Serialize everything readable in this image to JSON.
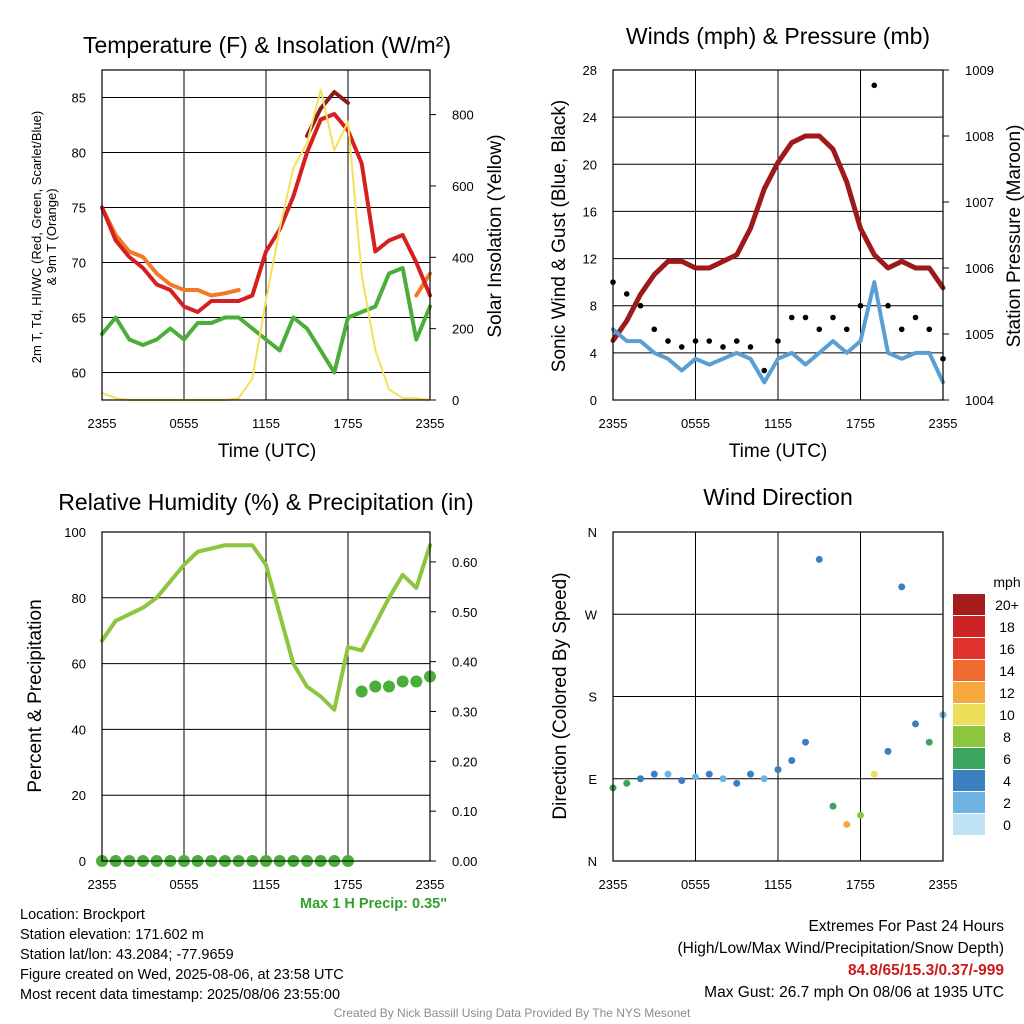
{
  "figure": {
    "footer": {
      "location": "Location: Brockport",
      "elevation": "Station elevation: 171.602 m",
      "latlon": "Station lat/lon: 43.2084; -77.9659",
      "created": "Figure created on Wed, 2025-08-06, at 23:58 UTC",
      "recent": "Most recent data timestamp: 2025/08/06 23:55:00",
      "max_precip": "Max 1 H Precip: 0.35\"",
      "extremes_title": "Extremes For Past 24 Hours",
      "extremes_sub": "(High/Low/Max Wind/Precipitation/Snow Depth)",
      "extremes_values": "84.8/65/15.3/0.37/-999",
      "max_gust": "Max Gust: 26.7 mph On 08/06 at 1935 UTC",
      "credit": "Created By Nick Bassill Using Data Provided By The NYS Mesonet"
    },
    "colors": {
      "temp": "#d62020",
      "dew": "#4cae3a",
      "heat_index": "#8b1a1a",
      "temp9m": "#f07a2a",
      "insolation": "#f5e05a",
      "wind": "#5a9fd4",
      "gust": "#000000",
      "pressure": "#9e1a1a",
      "rh": "#8cc63f",
      "precip": "#4cae3a"
    }
  },
  "chart_data": [
    {
      "id": "temperature",
      "type": "line",
      "title": "Temperature (F) & Insolation (W/m²)",
      "xlabel": "Time (UTC)",
      "ylabel_line1": "2m T, Td, HI/WC (Red, Green, Scarlet/Blue)",
      "ylabel_line2": "& 9m T (Orange)",
      "y2label": "Solar Insolation (Yellow)",
      "x_ticks": [
        "2355",
        "0555",
        "1155",
        "1755",
        "2355"
      ],
      "y_ticks": [
        60,
        65,
        70,
        75,
        80,
        85
      ],
      "y2_ticks": [
        0,
        200,
        400,
        600,
        800
      ],
      "ylim": [
        57.5,
        87.5
      ],
      "y2lim": [
        0,
        925
      ],
      "x": [
        0,
        1,
        2,
        3,
        4,
        5,
        6,
        7,
        8,
        9,
        10,
        11,
        12,
        13,
        14,
        15,
        16,
        17,
        18,
        19,
        20,
        21,
        22,
        23,
        24
      ],
      "series": [
        {
          "key": "temp9m",
          "values": [
            75,
            72.5,
            71,
            70.5,
            69,
            68,
            67.5,
            67.5,
            67,
            67.2,
            67.5,
            null,
            null,
            null,
            null,
            null,
            null,
            null,
            null,
            null,
            null,
            null,
            null,
            67,
            69
          ]
        },
        {
          "key": "temp",
          "values": [
            75,
            72,
            70.5,
            69.5,
            68,
            67.5,
            66,
            65.5,
            66.5,
            66.5,
            66.5,
            67,
            71,
            73,
            76,
            80,
            83,
            83.5,
            82,
            79,
            71,
            72,
            72.5,
            70,
            67
          ]
        },
        {
          "key": "heat_index",
          "values": [
            null,
            null,
            null,
            null,
            null,
            null,
            null,
            null,
            null,
            null,
            null,
            null,
            null,
            null,
            null,
            81.5,
            84,
            85.5,
            84.5,
            null,
            null,
            null,
            null,
            null,
            null
          ]
        },
        {
          "key": "dew",
          "values": [
            63.5,
            65,
            63,
            62.5,
            63,
            64,
            63,
            64.5,
            64.5,
            65,
            65,
            64,
            63,
            62,
            65,
            64,
            62,
            60,
            65,
            65.5,
            66,
            69,
            69.5,
            63,
            66
          ]
        },
        {
          "key": "insolation",
          "values": [
            20,
            5,
            0,
            0,
            0,
            0,
            0,
            0,
            0,
            0,
            5,
            60,
            280,
            480,
            650,
            720,
            870,
            700,
            780,
            350,
            140,
            30,
            5,
            5,
            0
          ]
        }
      ]
    },
    {
      "id": "winds",
      "type": "line",
      "title": "Winds (mph) & Pressure (mb)",
      "xlabel": "Time (UTC)",
      "ylabel": "Sonic Wind & Gust (Blue, Black)",
      "y2label": "Station Pressure (Maroon)",
      "x_ticks": [
        "2355",
        "0555",
        "1155",
        "1755",
        "2355"
      ],
      "y_ticks": [
        0,
        4,
        8,
        12,
        16,
        20,
        24,
        28
      ],
      "y2_ticks": [
        1004,
        1005,
        1006,
        1007,
        1008,
        1009
      ],
      "ylim": [
        0,
        28
      ],
      "y2lim": [
        1004,
        1009
      ],
      "x": [
        0,
        1,
        2,
        3,
        4,
        5,
        6,
        7,
        8,
        9,
        10,
        11,
        12,
        13,
        14,
        15,
        16,
        17,
        18,
        19,
        20,
        21,
        22,
        23,
        24
      ],
      "series": [
        {
          "key": "pressure",
          "values": [
            1004.9,
            1005.2,
            1005.6,
            1005.9,
            1006.1,
            1006.1,
            1006.0,
            1006.0,
            1006.1,
            1006.2,
            1006.6,
            1007.2,
            1007.6,
            1007.9,
            1008.0,
            1008.0,
            1007.8,
            1007.3,
            1006.6,
            1006.2,
            1006.0,
            1006.1,
            1006.0,
            1006.0,
            1005.7
          ]
        },
        {
          "key": "wind",
          "values": [
            6,
            5,
            5,
            4,
            3.5,
            2.5,
            3.5,
            3,
            3.5,
            4,
            3.5,
            1.5,
            3.5,
            4,
            3,
            4,
            5,
            4,
            5,
            10,
            4,
            3.5,
            4,
            4,
            1.5
          ]
        },
        {
          "key": "gust",
          "values": [
            10,
            9,
            8,
            6,
            5,
            4.5,
            5,
            5,
            4.5,
            5,
            4.5,
            2.5,
            5,
            7,
            7,
            6,
            7,
            6,
            8,
            26.7,
            8,
            6,
            7,
            6,
            3.5
          ]
        }
      ]
    },
    {
      "id": "humidity",
      "type": "line",
      "title": "Relative Humidity (%) & Precipitation (in)",
      "ylabel": "Percent & Precipitation",
      "x_ticks": [
        "2355",
        "0555",
        "1155",
        "1755",
        "2355"
      ],
      "y_ticks": [
        0,
        20,
        40,
        60,
        80,
        100
      ],
      "y2_ticks": [
        "0.00",
        "0.10",
        "0.20",
        "0.30",
        "0.40",
        "0.50",
        "0.60"
      ],
      "ylim": [
        0,
        100
      ],
      "y2lim": [
        0,
        0.66
      ],
      "x": [
        0,
        1,
        2,
        3,
        4,
        5,
        6,
        7,
        8,
        9,
        10,
        11,
        12,
        13,
        14,
        15,
        16,
        17,
        18,
        19,
        20,
        21,
        22,
        23,
        24
      ],
      "series": [
        {
          "key": "rh",
          "values": [
            67,
            73,
            75,
            77,
            80,
            85,
            90,
            94,
            95,
            96,
            96,
            96,
            90,
            75,
            60,
            53,
            50,
            46,
            65,
            64,
            72,
            80,
            87,
            83,
            96
          ]
        },
        {
          "key": "precip",
          "values": [
            0,
            0,
            0,
            0,
            0,
            0,
            0,
            0,
            0,
            0,
            0,
            0,
            0,
            0,
            0,
            0,
            0,
            0,
            0,
            0.34,
            0.35,
            0.35,
            0.36,
            0.36,
            0.37
          ]
        }
      ]
    },
    {
      "id": "direction",
      "type": "scatter",
      "title": "Wind Direction",
      "ylabel": "Direction (Colored By Speed)",
      "x_ticks": [
        "2355",
        "0555",
        "1155",
        "1755",
        "2355"
      ],
      "y_ticks": [
        "N",
        "E",
        "S",
        "W",
        "N"
      ],
      "ylim": [
        0,
        360
      ],
      "legend_title": "mph",
      "legend_labels": [
        "20+",
        "18",
        "16",
        "14",
        "12",
        "10",
        "8",
        "6",
        "4",
        "2",
        "0"
      ],
      "legend_colors": [
        "#a51c1c",
        "#cc2424",
        "#e0332b",
        "#ef6a2e",
        "#f6a83e",
        "#ece05a",
        "#8cc63f",
        "#3aa55c",
        "#3a7fc0",
        "#6fb3e3",
        "#bfe3f5"
      ],
      "x": [
        0,
        1,
        2,
        3,
        4,
        5,
        6,
        7,
        8,
        9,
        10,
        11,
        12,
        13,
        14,
        15,
        16,
        17,
        18,
        19,
        20,
        21,
        22,
        23,
        24
      ],
      "values": [
        80,
        85,
        90,
        95,
        95,
        88,
        92,
        95,
        90,
        85,
        95,
        90,
        100,
        110,
        130,
        330,
        60,
        40,
        50,
        95,
        120,
        300,
        150,
        130,
        160
      ],
      "speeds": [
        5,
        6,
        4,
        3,
        2,
        3,
        2,
        3,
        2,
        3,
        3,
        1,
        3,
        4,
        3,
        4,
        5,
        12,
        7,
        10,
        4,
        3,
        4,
        5,
        2
      ]
    }
  ]
}
